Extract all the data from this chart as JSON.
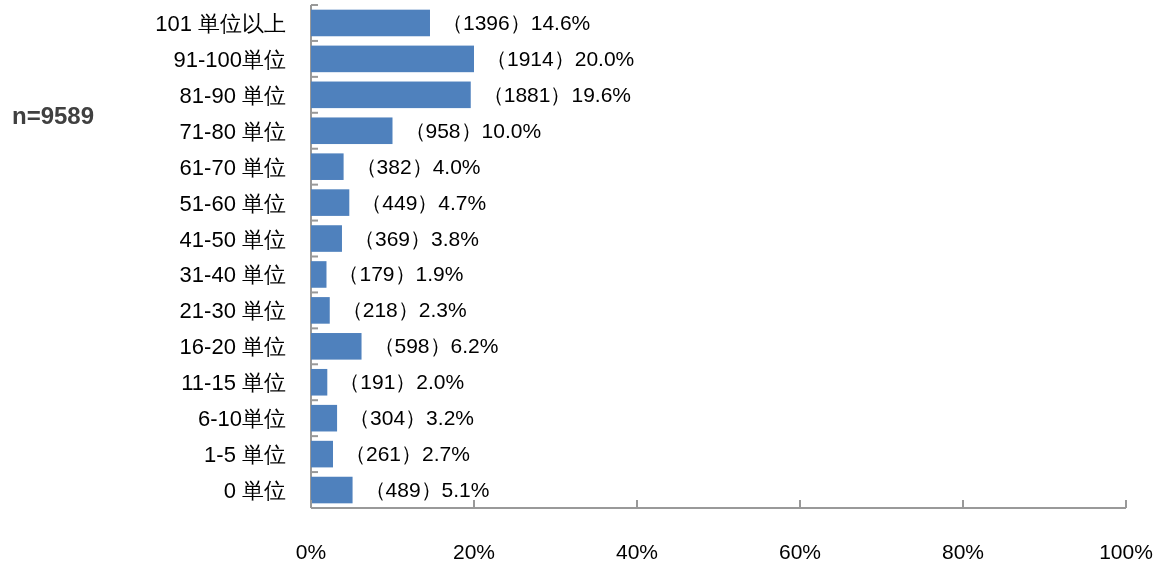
{
  "chart_data": {
    "type": "bar",
    "orientation": "horizontal",
    "categories": [
      "101 単位以上",
      "91-100単位",
      "81-90 単位",
      "71-80 単位",
      "61-70 単位",
      "51-60 単位",
      "41-50 単位",
      "31-40 単位",
      "21-30 単位",
      "16-20 単位",
      "11-15 単位",
      "6-10単位",
      "1-5 単位",
      "0 単位"
    ],
    "values": [
      14.6,
      20.0,
      19.6,
      10.0,
      4.0,
      4.7,
      3.8,
      1.9,
      2.3,
      6.2,
      2.0,
      3.2,
      2.7,
      5.1
    ],
    "value_labels": [
      "（1396）14.6%",
      "（1914）20.0%",
      "（1881）19.6%",
      "（958）10.0%",
      "（382）4.0%",
      "（449）4.7%",
      "（369）3.8%",
      "（179）1.9%",
      "（218）2.3%",
      "（598）6.2%",
      "（191）2.0%",
      "（304）3.2%",
      "（261）2.7%",
      "（489）5.1%"
    ],
    "color": "#4f81bd",
    "xlim": [
      0,
      100
    ],
    "xticks": [
      {
        "value": 0,
        "label": "0%"
      },
      {
        "value": 20,
        "label": "20%"
      },
      {
        "value": 40,
        "label": "40%"
      },
      {
        "value": 60,
        "label": "60%"
      },
      {
        "value": 80,
        "label": "80%"
      },
      {
        "value": 100,
        "label": "100%"
      }
    ],
    "annotations": [
      "n=9589"
    ]
  }
}
